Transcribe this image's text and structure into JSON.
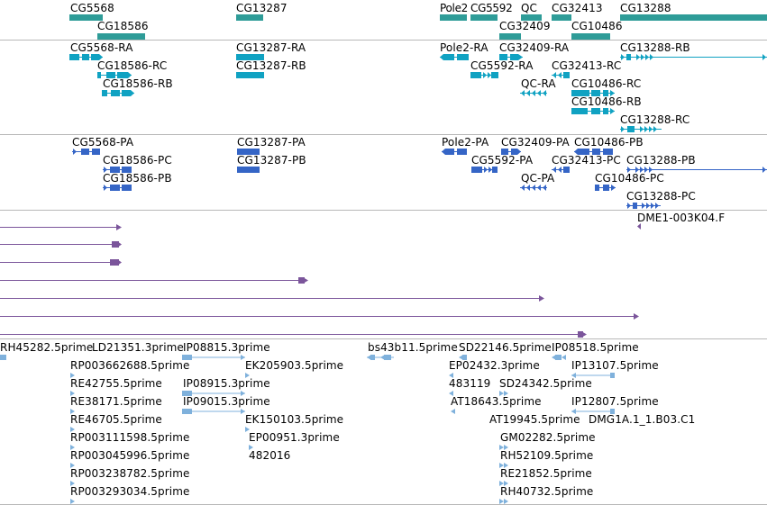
{
  "colors": {
    "gene": "#2e9c98",
    "mrna_fb": "#10a2c2",
    "mrna_ens": "#3565c6",
    "est_line": "#7b559b",
    "cdna": "#7fb1dc",
    "divider": "#b8b8b8"
  },
  "tracks": {
    "genes": {
      "glyph_style": "thick-bar",
      "features": [
        {
          "label": "CG5568"
        },
        {
          "label": "CG18586"
        },
        {
          "label": "CG13287"
        },
        {
          "label": "Pole2"
        },
        {
          "label": "CG5592"
        },
        {
          "label": "QC"
        },
        {
          "label": "CG32409"
        },
        {
          "label": "CG32413"
        },
        {
          "label": "CG10486"
        },
        {
          "label": "CG13288"
        }
      ]
    },
    "fb_transcripts": {
      "glyph_style": "arrowed-exons",
      "features": [
        {
          "label": "CG5568-RA"
        },
        {
          "label": "CG18586-RC"
        },
        {
          "label": "CG18586-RB"
        },
        {
          "label": "CG13287-RA"
        },
        {
          "label": "CG13287-RB"
        },
        {
          "label": "Pole2-RA"
        },
        {
          "label": "CG32409-RA"
        },
        {
          "label": "CG5592-RA"
        },
        {
          "label": "QC-RA"
        },
        {
          "label": "CG32413-RC"
        },
        {
          "label": "CG10486-RC"
        },
        {
          "label": "CG10486-RB"
        },
        {
          "label": "CG13288-RB"
        },
        {
          "label": "CG13288-RC"
        }
      ]
    },
    "ens_transcripts": {
      "glyph_style": "arrowed-exons",
      "features": [
        {
          "label": "CG5568-PA"
        },
        {
          "label": "CG18586-PC"
        },
        {
          "label": "CG18586-PB"
        },
        {
          "label": "CG13287-PA"
        },
        {
          "label": "CG13287-PB"
        },
        {
          "label": "Pole2-PA"
        },
        {
          "label": "CG32409-PA"
        },
        {
          "label": "CG10486-PB"
        },
        {
          "label": "CG5592-PA"
        },
        {
          "label": "CG32413-PC"
        },
        {
          "label": "CG13288-PB"
        },
        {
          "label": "QC-PA"
        },
        {
          "label": "CG10486-PC"
        },
        {
          "label": "CG13288-PC"
        }
      ]
    },
    "est_alignments": {
      "glyph_style": "line-with-end-cap",
      "features": [
        {
          "label": "DME1-003K04.F"
        },
        {
          "label": ""
        },
        {
          "label": ""
        },
        {
          "label": ""
        },
        {
          "label": ""
        },
        {
          "label": ""
        },
        {
          "label": ""
        },
        {
          "label": ""
        }
      ]
    },
    "cdna_reads": {
      "glyph_style": "small-arrows",
      "features": [
        {
          "label": "RH45282.5prime"
        },
        {
          "label": "LD21351.3prime"
        },
        {
          "label": "IP08815.3prime"
        },
        {
          "label": "bs43b11.5prime"
        },
        {
          "label": "SD22146.5prime"
        },
        {
          "label": "IP08518.5prime"
        },
        {
          "label": "RP003662688.5prime"
        },
        {
          "label": "EK205903.5prime"
        },
        {
          "label": "EP02432.3prime"
        },
        {
          "label": "IP13107.5prime"
        },
        {
          "label": "RE42755.5prime"
        },
        {
          "label": "IP08915.3prime"
        },
        {
          "label": "483119"
        },
        {
          "label": "SD24342.5prime"
        },
        {
          "label": "RE38171.5prime"
        },
        {
          "label": "IP09015.3prime"
        },
        {
          "label": "AT18643.5prime"
        },
        {
          "label": "IP12807.5prime"
        },
        {
          "label": "RE46705.5prime"
        },
        {
          "label": "EK150103.5prime"
        },
        {
          "label": "AT19945.5prime"
        },
        {
          "label": "DMG1A.1_1.B03.C1"
        },
        {
          "label": "RP003111598.5prime"
        },
        {
          "label": "EP00951.3prime"
        },
        {
          "label": "GM02282.5prime"
        },
        {
          "label": "RP003045996.5prime"
        },
        {
          "label": "482016"
        },
        {
          "label": "RH52109.5prime"
        },
        {
          "label": "RP003238782.5prime"
        },
        {
          "label": "RE21852.5prime"
        },
        {
          "label": "RP003293034.5prime"
        },
        {
          "label": "RH40732.5prime"
        }
      ]
    }
  }
}
